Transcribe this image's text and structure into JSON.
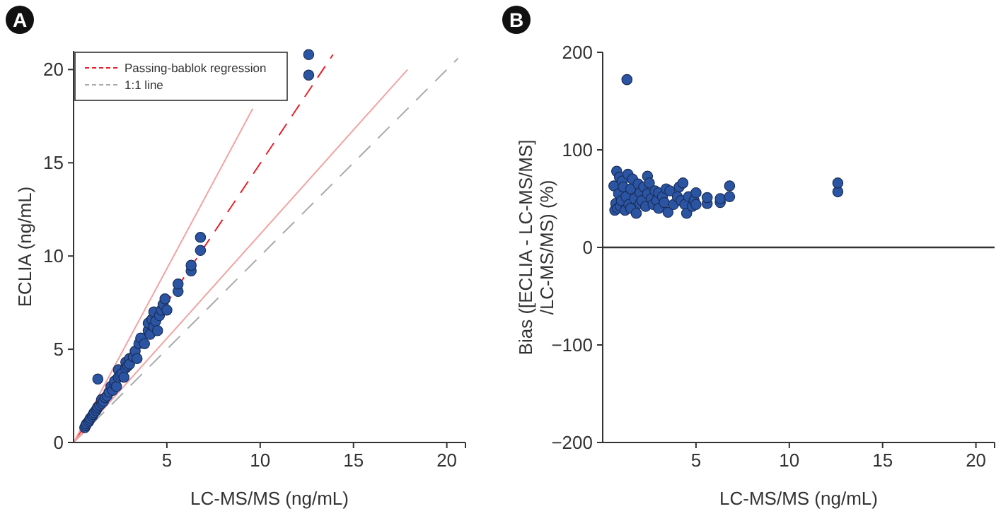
{
  "chart_data": [
    {
      "type": "scatter",
      "title": "A",
      "xlabel": "LC-MS/MS (ng/mL)",
      "ylabel": "ECLIA (ng/mL)",
      "xlim": [
        0,
        21
      ],
      "ylim": [
        0,
        21
      ],
      "xticks": [
        5,
        10,
        15,
        20
      ],
      "yticks": [
        0,
        5,
        10,
        15,
        20
      ],
      "grid": false,
      "legend": "top left",
      "marker": "circle",
      "series": [
        {
          "color": "#2b55a3",
          "x": [
            0.6,
            0.65,
            0.7,
            0.8,
            0.85,
            0.9,
            1.0,
            1.05,
            1.1,
            1.2,
            1.25,
            1.3,
            1.3,
            1.4,
            1.5,
            1.5,
            1.6,
            1.7,
            1.8,
            1.9,
            2.0,
            2.1,
            2.2,
            2.2,
            2.3,
            2.4,
            2.4,
            2.5,
            2.6,
            2.7,
            2.8,
            2.8,
            2.9,
            3.0,
            3.0,
            3.2,
            3.3,
            3.4,
            3.5,
            3.6,
            3.8,
            4.0,
            4.0,
            4.1,
            4.2,
            4.3,
            4.3,
            4.4,
            4.5,
            4.6,
            4.7,
            4.8,
            4.9,
            5.0,
            5.6,
            5.6,
            6.3,
            6.3,
            6.8,
            6.8,
            12.6,
            12.6
          ],
          "values": [
            0.8,
            0.9,
            1.0,
            1.1,
            1.2,
            1.3,
            1.4,
            1.5,
            1.6,
            1.7,
            1.8,
            1.9,
            3.4,
            2.0,
            2.1,
            2.3,
            2.2,
            2.4,
            2.5,
            2.7,
            3.0,
            2.8,
            3.1,
            3.3,
            3.0,
            3.5,
            3.9,
            3.6,
            3.7,
            3.5,
            4.0,
            4.3,
            4.1,
            4.5,
            4.2,
            4.6,
            4.9,
            4.5,
            5.3,
            5.6,
            5.3,
            6.0,
            6.4,
            5.8,
            6.6,
            7.0,
            6.2,
            6.5,
            6.0,
            6.8,
            7.1,
            7.4,
            7.7,
            7.1,
            8.1,
            8.5,
            9.2,
            9.5,
            10.3,
            11.0,
            19.7,
            20.8
          ]
        },
        {
          "type": "line",
          "name": "Passing-bablok regression",
          "color": "#e8202a",
          "line_style": "dashed",
          "marker": "none",
          "x": [
            0,
            13.9
          ],
          "values": [
            0,
            20.8
          ]
        },
        {
          "type": "line",
          "name": "1:1 line",
          "color": "#aaaaaa",
          "line_style": "dashed",
          "marker": "none",
          "x": [
            0,
            20.6
          ],
          "values": [
            0,
            20.6
          ]
        },
        {
          "type": "line",
          "color": "#f4a3a3",
          "line_style": "solid",
          "marker": "none",
          "x": [
            0,
            9.6
          ],
          "values": [
            0,
            17.9
          ]
        },
        {
          "type": "line",
          "color": "#f4a3a3",
          "line_style": "solid",
          "marker": "none",
          "x": [
            0,
            17.9
          ],
          "values": [
            0,
            20
          ]
        }
      ]
    },
    {
      "type": "scatter",
      "title": "B",
      "xlabel": "LC-MS/MS (ng/mL)",
      "ylabel": "Bias ([ECLIA - LC-MS/MS]\n/LC-MS/MS) (%)",
      "xlim": [
        0,
        21
      ],
      "ylim": [
        -200,
        200
      ],
      "xticks": [
        5,
        10,
        15,
        20
      ],
      "yticks": [
        {
          "value": -200,
          "label": "−200"
        },
        {
          "value": -100,
          "label": "−100"
        },
        0,
        100,
        200
      ],
      "grid": false,
      "marker": "circle",
      "ref_lines": [
        {
          "axis": "y",
          "value": 0,
          "color": "#333333"
        }
      ],
      "series": [
        {
          "color": "#2b55a3",
          "x": [
            0.6,
            0.65,
            0.7,
            0.75,
            0.8,
            0.85,
            0.9,
            0.95,
            1.0,
            1.05,
            1.1,
            1.2,
            1.25,
            1.3,
            1.35,
            1.4,
            1.5,
            1.5,
            1.6,
            1.7,
            1.8,
            1.9,
            2.0,
            2.0,
            2.1,
            2.2,
            2.3,
            2.4,
            2.4,
            2.5,
            2.6,
            2.7,
            2.8,
            2.9,
            3.0,
            3.0,
            3.2,
            3.3,
            3.4,
            3.5,
            3.6,
            3.8,
            4.0,
            4.1,
            4.2,
            4.3,
            4.4,
            4.5,
            4.6,
            4.8,
            4.9,
            5.0,
            5.0,
            5.6,
            5.6,
            6.3,
            6.3,
            6.8,
            6.8,
            12.6,
            12.6
          ],
          "values": [
            63,
            38,
            45,
            78,
            40,
            55,
            72,
            42,
            48,
            68,
            62,
            38,
            52,
            172,
            75,
            44,
            60,
            40,
            70,
            50,
            35,
            65,
            56,
            45,
            48,
            62,
            42,
            73,
            55,
            66,
            50,
            44,
            58,
            48,
            40,
            56,
            52,
            46,
            60,
            36,
            58,
            44,
            52,
            62,
            48,
            66,
            44,
            35,
            52,
            42,
            48,
            44,
            56,
            45,
            51,
            46,
            50,
            52,
            63,
            57,
            66
          ]
        }
      ]
    }
  ]
}
